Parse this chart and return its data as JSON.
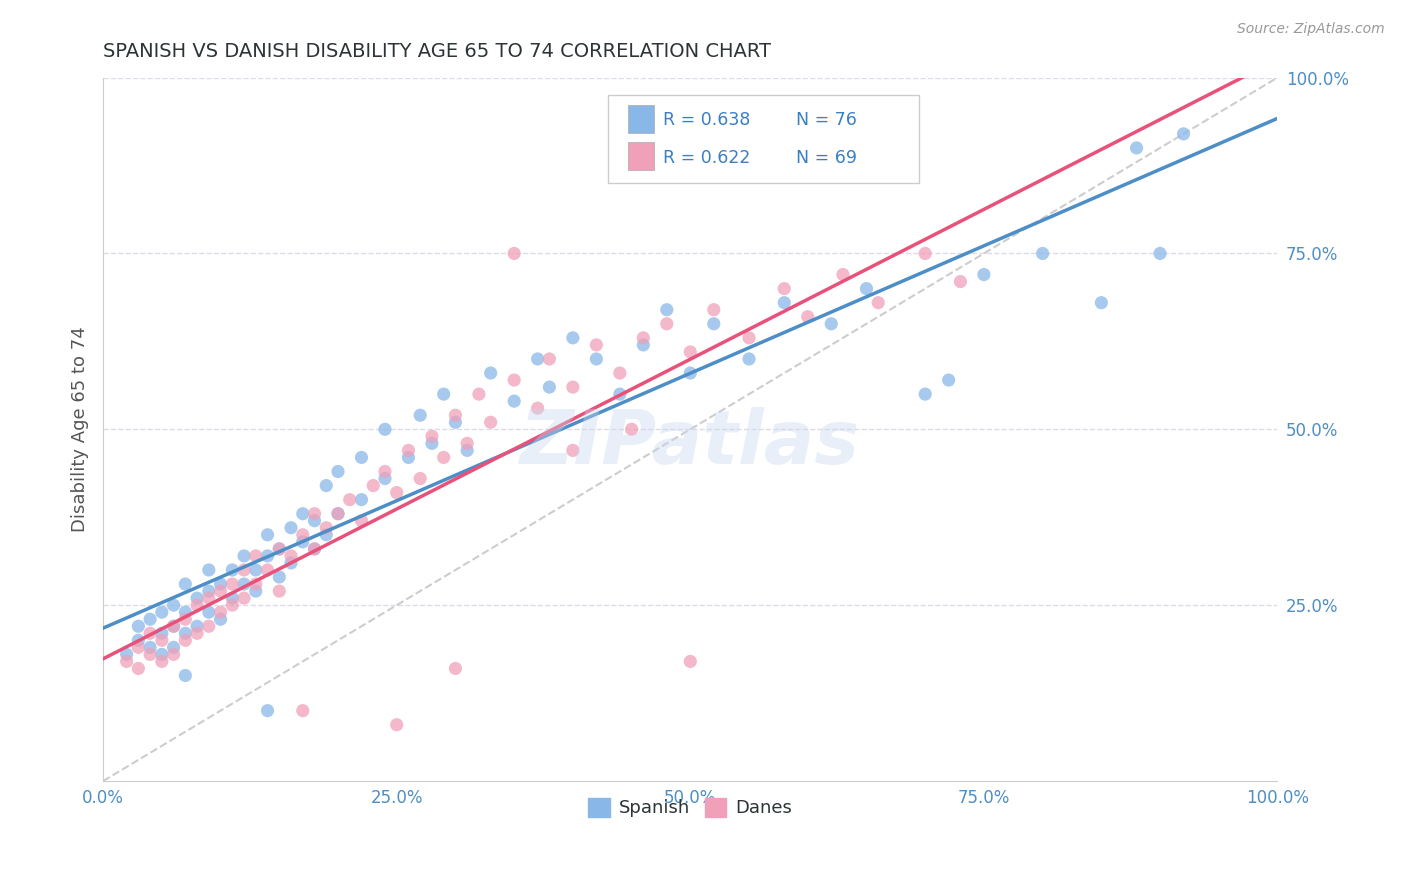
{
  "title": "SPANISH VS DANISH DISABILITY AGE 65 TO 74 CORRELATION CHART",
  "source": "Source: ZipAtlas.com",
  "ylabel": "Disability Age 65 to 74",
  "xlim": [
    0.0,
    1.0
  ],
  "ylim": [
    0.0,
    1.0
  ],
  "x_ticks": [
    0.0,
    0.25,
    0.5,
    0.75,
    1.0
  ],
  "y_ticks": [
    0.25,
    0.5,
    0.75,
    1.0
  ],
  "x_tick_labels": [
    "0.0%",
    "25.0%",
    "50.0%",
    "75.0%",
    "100.0%"
  ],
  "y_tick_labels": [
    "25.0%",
    "50.0%",
    "75.0%",
    "100.0%"
  ],
  "spanish_color": "#89b8e8",
  "danes_color": "#f0a0b8",
  "spanish_line_color": "#4d8ec7",
  "danes_line_color": "#e8527a",
  "diagonal_color": "#c8c8c8",
  "R_spanish": 0.638,
  "N_spanish": 76,
  "R_danes": 0.622,
  "N_danes": 69,
  "legend_spanish_color": "#89b8e8",
  "legend_danes_color": "#f0a0b8",
  "watermark": "ZIPatlas",
  "background_color": "#ffffff",
  "tick_color": "#4d8ec7",
  "title_color": "#2d3436",
  "axis_label_color": "#555555",
  "grid_color": "#d8d8e8",
  "spanish_points": [
    [
      0.02,
      0.18
    ],
    [
      0.03,
      0.2
    ],
    [
      0.03,
      0.22
    ],
    [
      0.04,
      0.19
    ],
    [
      0.04,
      0.23
    ],
    [
      0.05,
      0.18
    ],
    [
      0.05,
      0.21
    ],
    [
      0.05,
      0.24
    ],
    [
      0.06,
      0.19
    ],
    [
      0.06,
      0.22
    ],
    [
      0.06,
      0.25
    ],
    [
      0.07,
      0.21
    ],
    [
      0.07,
      0.24
    ],
    [
      0.07,
      0.28
    ],
    [
      0.08,
      0.22
    ],
    [
      0.08,
      0.26
    ],
    [
      0.09,
      0.24
    ],
    [
      0.09,
      0.27
    ],
    [
      0.09,
      0.3
    ],
    [
      0.1,
      0.23
    ],
    [
      0.1,
      0.28
    ],
    [
      0.11,
      0.26
    ],
    [
      0.11,
      0.3
    ],
    [
      0.12,
      0.28
    ],
    [
      0.12,
      0.32
    ],
    [
      0.13,
      0.3
    ],
    [
      0.13,
      0.27
    ],
    [
      0.14,
      0.32
    ],
    [
      0.14,
      0.35
    ],
    [
      0.15,
      0.29
    ],
    [
      0.15,
      0.33
    ],
    [
      0.16,
      0.31
    ],
    [
      0.16,
      0.36
    ],
    [
      0.17,
      0.34
    ],
    [
      0.17,
      0.38
    ],
    [
      0.18,
      0.33
    ],
    [
      0.18,
      0.37
    ],
    [
      0.19,
      0.35
    ],
    [
      0.19,
      0.42
    ],
    [
      0.2,
      0.38
    ],
    [
      0.2,
      0.44
    ],
    [
      0.22,
      0.4
    ],
    [
      0.22,
      0.46
    ],
    [
      0.24,
      0.43
    ],
    [
      0.24,
      0.5
    ],
    [
      0.26,
      0.46
    ],
    [
      0.27,
      0.52
    ],
    [
      0.28,
      0.48
    ],
    [
      0.29,
      0.55
    ],
    [
      0.3,
      0.51
    ],
    [
      0.31,
      0.47
    ],
    [
      0.33,
      0.58
    ],
    [
      0.35,
      0.54
    ],
    [
      0.37,
      0.6
    ],
    [
      0.38,
      0.56
    ],
    [
      0.4,
      0.63
    ],
    [
      0.42,
      0.6
    ],
    [
      0.44,
      0.55
    ],
    [
      0.46,
      0.62
    ],
    [
      0.48,
      0.67
    ],
    [
      0.5,
      0.58
    ],
    [
      0.52,
      0.65
    ],
    [
      0.55,
      0.6
    ],
    [
      0.58,
      0.68
    ],
    [
      0.62,
      0.65
    ],
    [
      0.65,
      0.7
    ],
    [
      0.7,
      0.55
    ],
    [
      0.72,
      0.57
    ],
    [
      0.75,
      0.72
    ],
    [
      0.8,
      0.75
    ],
    [
      0.85,
      0.68
    ],
    [
      0.88,
      0.9
    ],
    [
      0.9,
      0.75
    ],
    [
      0.92,
      0.92
    ],
    [
      0.07,
      0.15
    ],
    [
      0.14,
      0.1
    ]
  ],
  "danes_points": [
    [
      0.02,
      0.17
    ],
    [
      0.03,
      0.16
    ],
    [
      0.03,
      0.19
    ],
    [
      0.04,
      0.18
    ],
    [
      0.04,
      0.21
    ],
    [
      0.05,
      0.17
    ],
    [
      0.05,
      0.2
    ],
    [
      0.06,
      0.18
    ],
    [
      0.06,
      0.22
    ],
    [
      0.07,
      0.2
    ],
    [
      0.07,
      0.23
    ],
    [
      0.08,
      0.21
    ],
    [
      0.08,
      0.25
    ],
    [
      0.09,
      0.22
    ],
    [
      0.09,
      0.26
    ],
    [
      0.1,
      0.24
    ],
    [
      0.1,
      0.27
    ],
    [
      0.11,
      0.25
    ],
    [
      0.11,
      0.28
    ],
    [
      0.12,
      0.26
    ],
    [
      0.12,
      0.3
    ],
    [
      0.13,
      0.28
    ],
    [
      0.13,
      0.32
    ],
    [
      0.14,
      0.3
    ],
    [
      0.15,
      0.33
    ],
    [
      0.15,
      0.27
    ],
    [
      0.16,
      0.32
    ],
    [
      0.17,
      0.35
    ],
    [
      0.18,
      0.33
    ],
    [
      0.18,
      0.38
    ],
    [
      0.19,
      0.36
    ],
    [
      0.2,
      0.38
    ],
    [
      0.21,
      0.4
    ],
    [
      0.22,
      0.37
    ],
    [
      0.23,
      0.42
    ],
    [
      0.24,
      0.44
    ],
    [
      0.25,
      0.41
    ],
    [
      0.26,
      0.47
    ],
    [
      0.27,
      0.43
    ],
    [
      0.28,
      0.49
    ],
    [
      0.29,
      0.46
    ],
    [
      0.3,
      0.52
    ],
    [
      0.31,
      0.48
    ],
    [
      0.32,
      0.55
    ],
    [
      0.33,
      0.51
    ],
    [
      0.35,
      0.57
    ],
    [
      0.37,
      0.53
    ],
    [
      0.38,
      0.6
    ],
    [
      0.4,
      0.56
    ],
    [
      0.42,
      0.62
    ],
    [
      0.44,
      0.58
    ],
    [
      0.46,
      0.63
    ],
    [
      0.48,
      0.65
    ],
    [
      0.5,
      0.61
    ],
    [
      0.52,
      0.67
    ],
    [
      0.55,
      0.63
    ],
    [
      0.58,
      0.7
    ],
    [
      0.6,
      0.66
    ],
    [
      0.63,
      0.72
    ],
    [
      0.66,
      0.68
    ],
    [
      0.7,
      0.75
    ],
    [
      0.73,
      0.71
    ],
    [
      0.35,
      0.75
    ],
    [
      0.4,
      0.47
    ],
    [
      0.45,
      0.5
    ],
    [
      0.17,
      0.1
    ],
    [
      0.25,
      0.08
    ],
    [
      0.3,
      0.16
    ],
    [
      0.5,
      0.17
    ]
  ]
}
